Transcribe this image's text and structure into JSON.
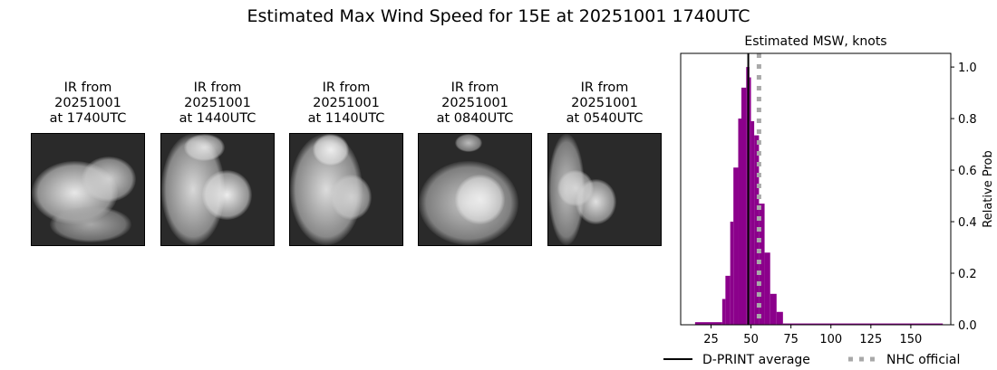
{
  "title": "Estimated Max Wind Speed for 15E at 20251001 1740UTC",
  "panels": [
    {
      "l1": "IR from",
      "l2": "20251001",
      "l3": "at 1740UTC"
    },
    {
      "l1": "IR from",
      "l2": "20251001",
      "l3": "at 1440UTC"
    },
    {
      "l1": "IR from",
      "l2": "20251001",
      "l3": "at 1140UTC"
    },
    {
      "l1": "IR from",
      "l2": "20251001",
      "l3": "at 0840UTC"
    },
    {
      "l1": "IR from",
      "l2": "20251001",
      "l3": "at 0540UTC"
    }
  ],
  "chart_data": {
    "type": "bar",
    "title": "Estimated MSW, knots",
    "ylabel": "Relative Prob",
    "xlabel": "",
    "xlim": [
      6,
      175
    ],
    "ylim": [
      0,
      1.053
    ],
    "xticks": [
      25,
      50,
      75,
      100,
      125,
      150
    ],
    "yticks": [
      0.0,
      0.2,
      0.4,
      0.6,
      0.8,
      1.0
    ],
    "bar_color": "#8b008b",
    "bins": [
      {
        "from": 15,
        "to": 32,
        "value": 0.01
      },
      {
        "from": 32,
        "to": 34,
        "value": 0.1
      },
      {
        "from": 34,
        "to": 37,
        "value": 0.19
      },
      {
        "from": 37,
        "to": 39,
        "value": 0.4
      },
      {
        "from": 39,
        "to": 42,
        "value": 0.61
      },
      {
        "from": 42,
        "to": 44,
        "value": 0.8
      },
      {
        "from": 44,
        "to": 47,
        "value": 0.92
      },
      {
        "from": 47,
        "to": 49,
        "value": 1.0
      },
      {
        "from": 49,
        "to": 50,
        "value": 0.96
      },
      {
        "from": 50,
        "to": 52,
        "value": 0.79
      },
      {
        "from": 52,
        "to": 55,
        "value": 0.735
      },
      {
        "from": 55,
        "to": 58.5,
        "value": 0.47
      },
      {
        "from": 58.5,
        "to": 62,
        "value": 0.28
      },
      {
        "from": 62,
        "to": 66,
        "value": 0.12
      },
      {
        "from": 66,
        "to": 70,
        "value": 0.05
      },
      {
        "from": 70,
        "to": 170,
        "value": 0.005
      }
    ],
    "lines": [
      {
        "name": "D-PRINT average",
        "x": 48.3,
        "color": "#000000",
        "style": "solid"
      },
      {
        "name": "NHC official",
        "x": 55,
        "color": "#a9a9a9",
        "style": "dotted"
      }
    ],
    "legend": "bottom"
  }
}
